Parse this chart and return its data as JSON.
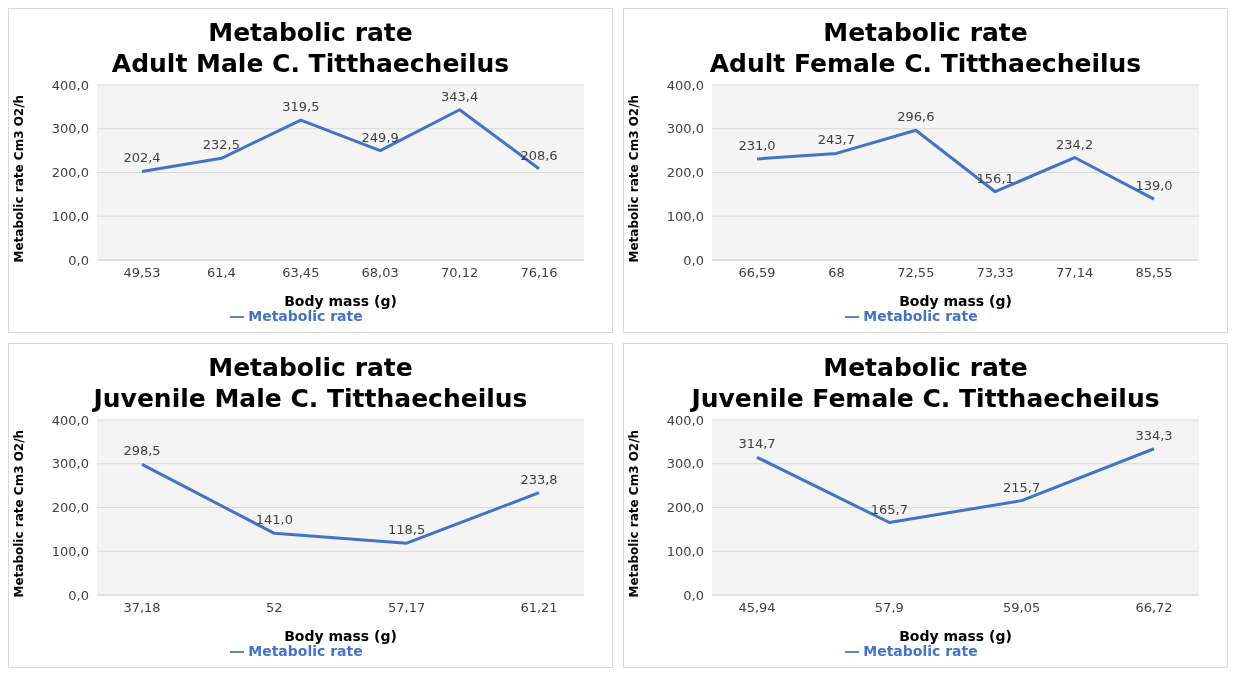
{
  "chart_data": [
    {
      "type": "line",
      "title": "Metabolic rate",
      "subtitle": "Adult Male C. Titthaecheilus",
      "xlabel": "Body mass (g)",
      "ylabel": "Metabolic rate Cm3 O2/h",
      "categories": [
        "49,53",
        "61,4",
        "63,45",
        "68,03",
        "70,12",
        "76,16"
      ],
      "series": [
        {
          "name": "Metabolic rate",
          "color": "#4472c4",
          "values": [
            202.4,
            232.5,
            319.5,
            249.9,
            343.4,
            208.6
          ],
          "value_labels": [
            "202,4",
            "232,5",
            "319,5",
            "249,9",
            "343,4",
            "208,6"
          ]
        }
      ],
      "ylim": [
        0,
        400
      ],
      "yticks": [
        {
          "value": 0,
          "label": "0,0"
        },
        {
          "value": 100,
          "label": "100,0"
        },
        {
          "value": 200,
          "label": "200,0"
        },
        {
          "value": 300,
          "label": "300,0"
        },
        {
          "value": 400,
          "label": "400,0"
        }
      ],
      "grid": "y",
      "legend": "bottom",
      "marker": "none"
    },
    {
      "type": "line",
      "title": "Metabolic rate",
      "subtitle": "Adult Female C. Titthaecheilus",
      "xlabel": "Body mass (g)",
      "ylabel": "Metabolic rate Cm3 O2/h",
      "categories": [
        "66,59",
        "68",
        "72,55",
        "73,33",
        "77,14",
        "85,55"
      ],
      "series": [
        {
          "name": "Metabolic rate",
          "color": "#4472c4",
          "values": [
            231.0,
            243.7,
            296.6,
            156.1,
            234.2,
            139.0
          ],
          "value_labels": [
            "231,0",
            "243,7",
            "296,6",
            "156,1",
            "234,2",
            "139,0"
          ]
        }
      ],
      "ylim": [
        0,
        400
      ],
      "yticks": [
        {
          "value": 0,
          "label": "0,0"
        },
        {
          "value": 100,
          "label": "100,0"
        },
        {
          "value": 200,
          "label": "200,0"
        },
        {
          "value": 300,
          "label": "300,0"
        },
        {
          "value": 400,
          "label": "400,0"
        }
      ],
      "grid": "y",
      "legend": "bottom",
      "marker": "none"
    },
    {
      "type": "line",
      "title": "Metabolic rate",
      "subtitle": "Juvenile Male C. Titthaecheilus",
      "xlabel": "Body mass (g)",
      "ylabel": "Metabolic rate Cm3 O2/h",
      "categories": [
        "37,18",
        "52",
        "57,17",
        "61,21"
      ],
      "series": [
        {
          "name": "Metabolic rate",
          "color": "#4472c4",
          "values": [
            298.5,
            141.0,
            118.5,
            233.8
          ],
          "value_labels": [
            "298,5",
            "141,0",
            "118,5",
            "233,8"
          ]
        }
      ],
      "ylim": [
        0,
        400
      ],
      "yticks": [
        {
          "value": 0,
          "label": "0,0"
        },
        {
          "value": 100,
          "label": "100,0"
        },
        {
          "value": 200,
          "label": "200,0"
        },
        {
          "value": 300,
          "label": "300,0"
        },
        {
          "value": 400,
          "label": "400,0"
        }
      ],
      "grid": "y",
      "legend": "bottom",
      "marker": "none"
    },
    {
      "type": "line",
      "title": "Metabolic rate",
      "subtitle": "Juvenile Female C. Titthaecheilus",
      "xlabel": "Body mass (g)",
      "ylabel": "Metabolic rate Cm3 O2/h",
      "categories": [
        "45,94",
        "57,9",
        "59,05",
        "66,72"
      ],
      "series": [
        {
          "name": "Metabolic rate",
          "color": "#4472c4",
          "values": [
            314.7,
            165.7,
            215.7,
            334.3
          ],
          "value_labels": [
            "314,7",
            "165,7",
            "215,7",
            "334,3"
          ]
        }
      ],
      "ylim": [
        0,
        400
      ],
      "yticks": [
        {
          "value": 0,
          "label": "0,0"
        },
        {
          "value": 100,
          "label": "100,0"
        },
        {
          "value": 200,
          "label": "200,0"
        },
        {
          "value": 300,
          "label": "300,0"
        },
        {
          "value": 400,
          "label": "400,0"
        }
      ],
      "grid": "y",
      "legend": "bottom",
      "marker": "none"
    }
  ]
}
